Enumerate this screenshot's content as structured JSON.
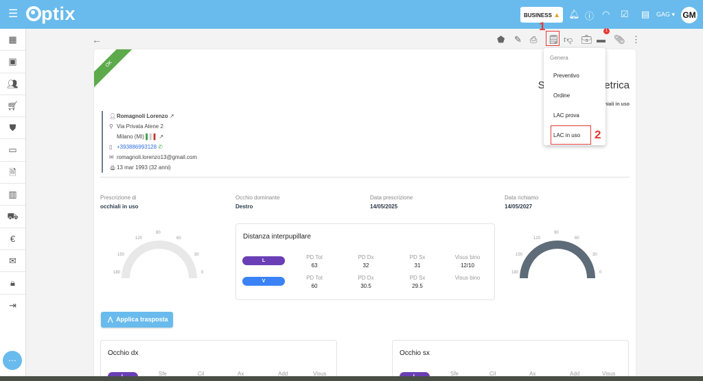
{
  "header": {
    "app_name": "ptix",
    "plan_badge": "BUSINESS",
    "store": "GAG",
    "avatar": "GM"
  },
  "sidebar": {
    "items": [
      "dashboard-icon",
      "calendar-icon",
      "clients-icon",
      "cart-icon",
      "shield-icon",
      "card-icon",
      "document-icon",
      "cash-register-icon",
      "truck-icon",
      "euro-icon",
      "mail-icon",
      "lock-icon",
      "logout-icon"
    ]
  },
  "annotations": {
    "step1": "1",
    "step2": "2"
  },
  "toolbar": {
    "messages_badge": "1"
  },
  "menu": {
    "header": "Genera",
    "items": [
      "Preventivo",
      "Ordine",
      "LAC prova",
      "LAC in uso"
    ]
  },
  "doc": {
    "status": "OK",
    "title": "Scheda optometrica",
    "subtitle": "del 14/05/2025 - occhiali in uso"
  },
  "patient": {
    "name": "Romagnoli Lorenzo",
    "address": "Via Privata Atene 2",
    "city": "Milano (MI)",
    "phone": "+393886993128",
    "email": "romagnoli.lorenzo13@gmail.com",
    "birth": "13 mar 1993 (32 anni)"
  },
  "fields": [
    {
      "label": "Prescrizione di",
      "value": "occhiali in uso"
    },
    {
      "label": "Occhio dominante",
      "value": "Destro"
    },
    {
      "label": "Data prescrizione",
      "value": "14/05/2025"
    },
    {
      "label": "Data richiamo",
      "value": "14/05/2027"
    }
  ],
  "gauge_ticks": [
    "180",
    "150",
    "120",
    "90",
    "60",
    "30",
    "0"
  ],
  "ipd": {
    "title": "Distanza interpupillare",
    "rows": [
      {
        "tag": "L",
        "color": "#6a3fb5",
        "cells": [
          {
            "l": "PD Tot",
            "v": "63"
          },
          {
            "l": "PD Dx",
            "v": "32"
          },
          {
            "l": "PD Sx",
            "v": "31"
          },
          {
            "l": "Visus bino",
            "v": "12/10"
          }
        ]
      },
      {
        "tag": "V",
        "color": "#3b82f6",
        "cells": [
          {
            "l": "PD Tot",
            "v": "60"
          },
          {
            "l": "PD Dx",
            "v": "30.5"
          },
          {
            "l": "PD Sx",
            "v": "29.5"
          },
          {
            "l": "Visus bino",
            "v": ""
          }
        ]
      }
    ]
  },
  "apply_button": "Applica trasposta",
  "eyes": [
    {
      "title": "Occhio dx",
      "tag": "L",
      "cols": [
        "Sfe",
        "Cil",
        "Ax",
        "Add",
        "Visus"
      ]
    },
    {
      "title": "Occhio sx",
      "tag": "L",
      "cols": [
        "Sfe",
        "Cil",
        "Ax",
        "Add",
        "Visus"
      ]
    }
  ],
  "colors": {
    "topbar": "#68bbec",
    "ok": "#5daa4c",
    "gauge_right": "#5e6b78",
    "highlight": "#e53935"
  }
}
